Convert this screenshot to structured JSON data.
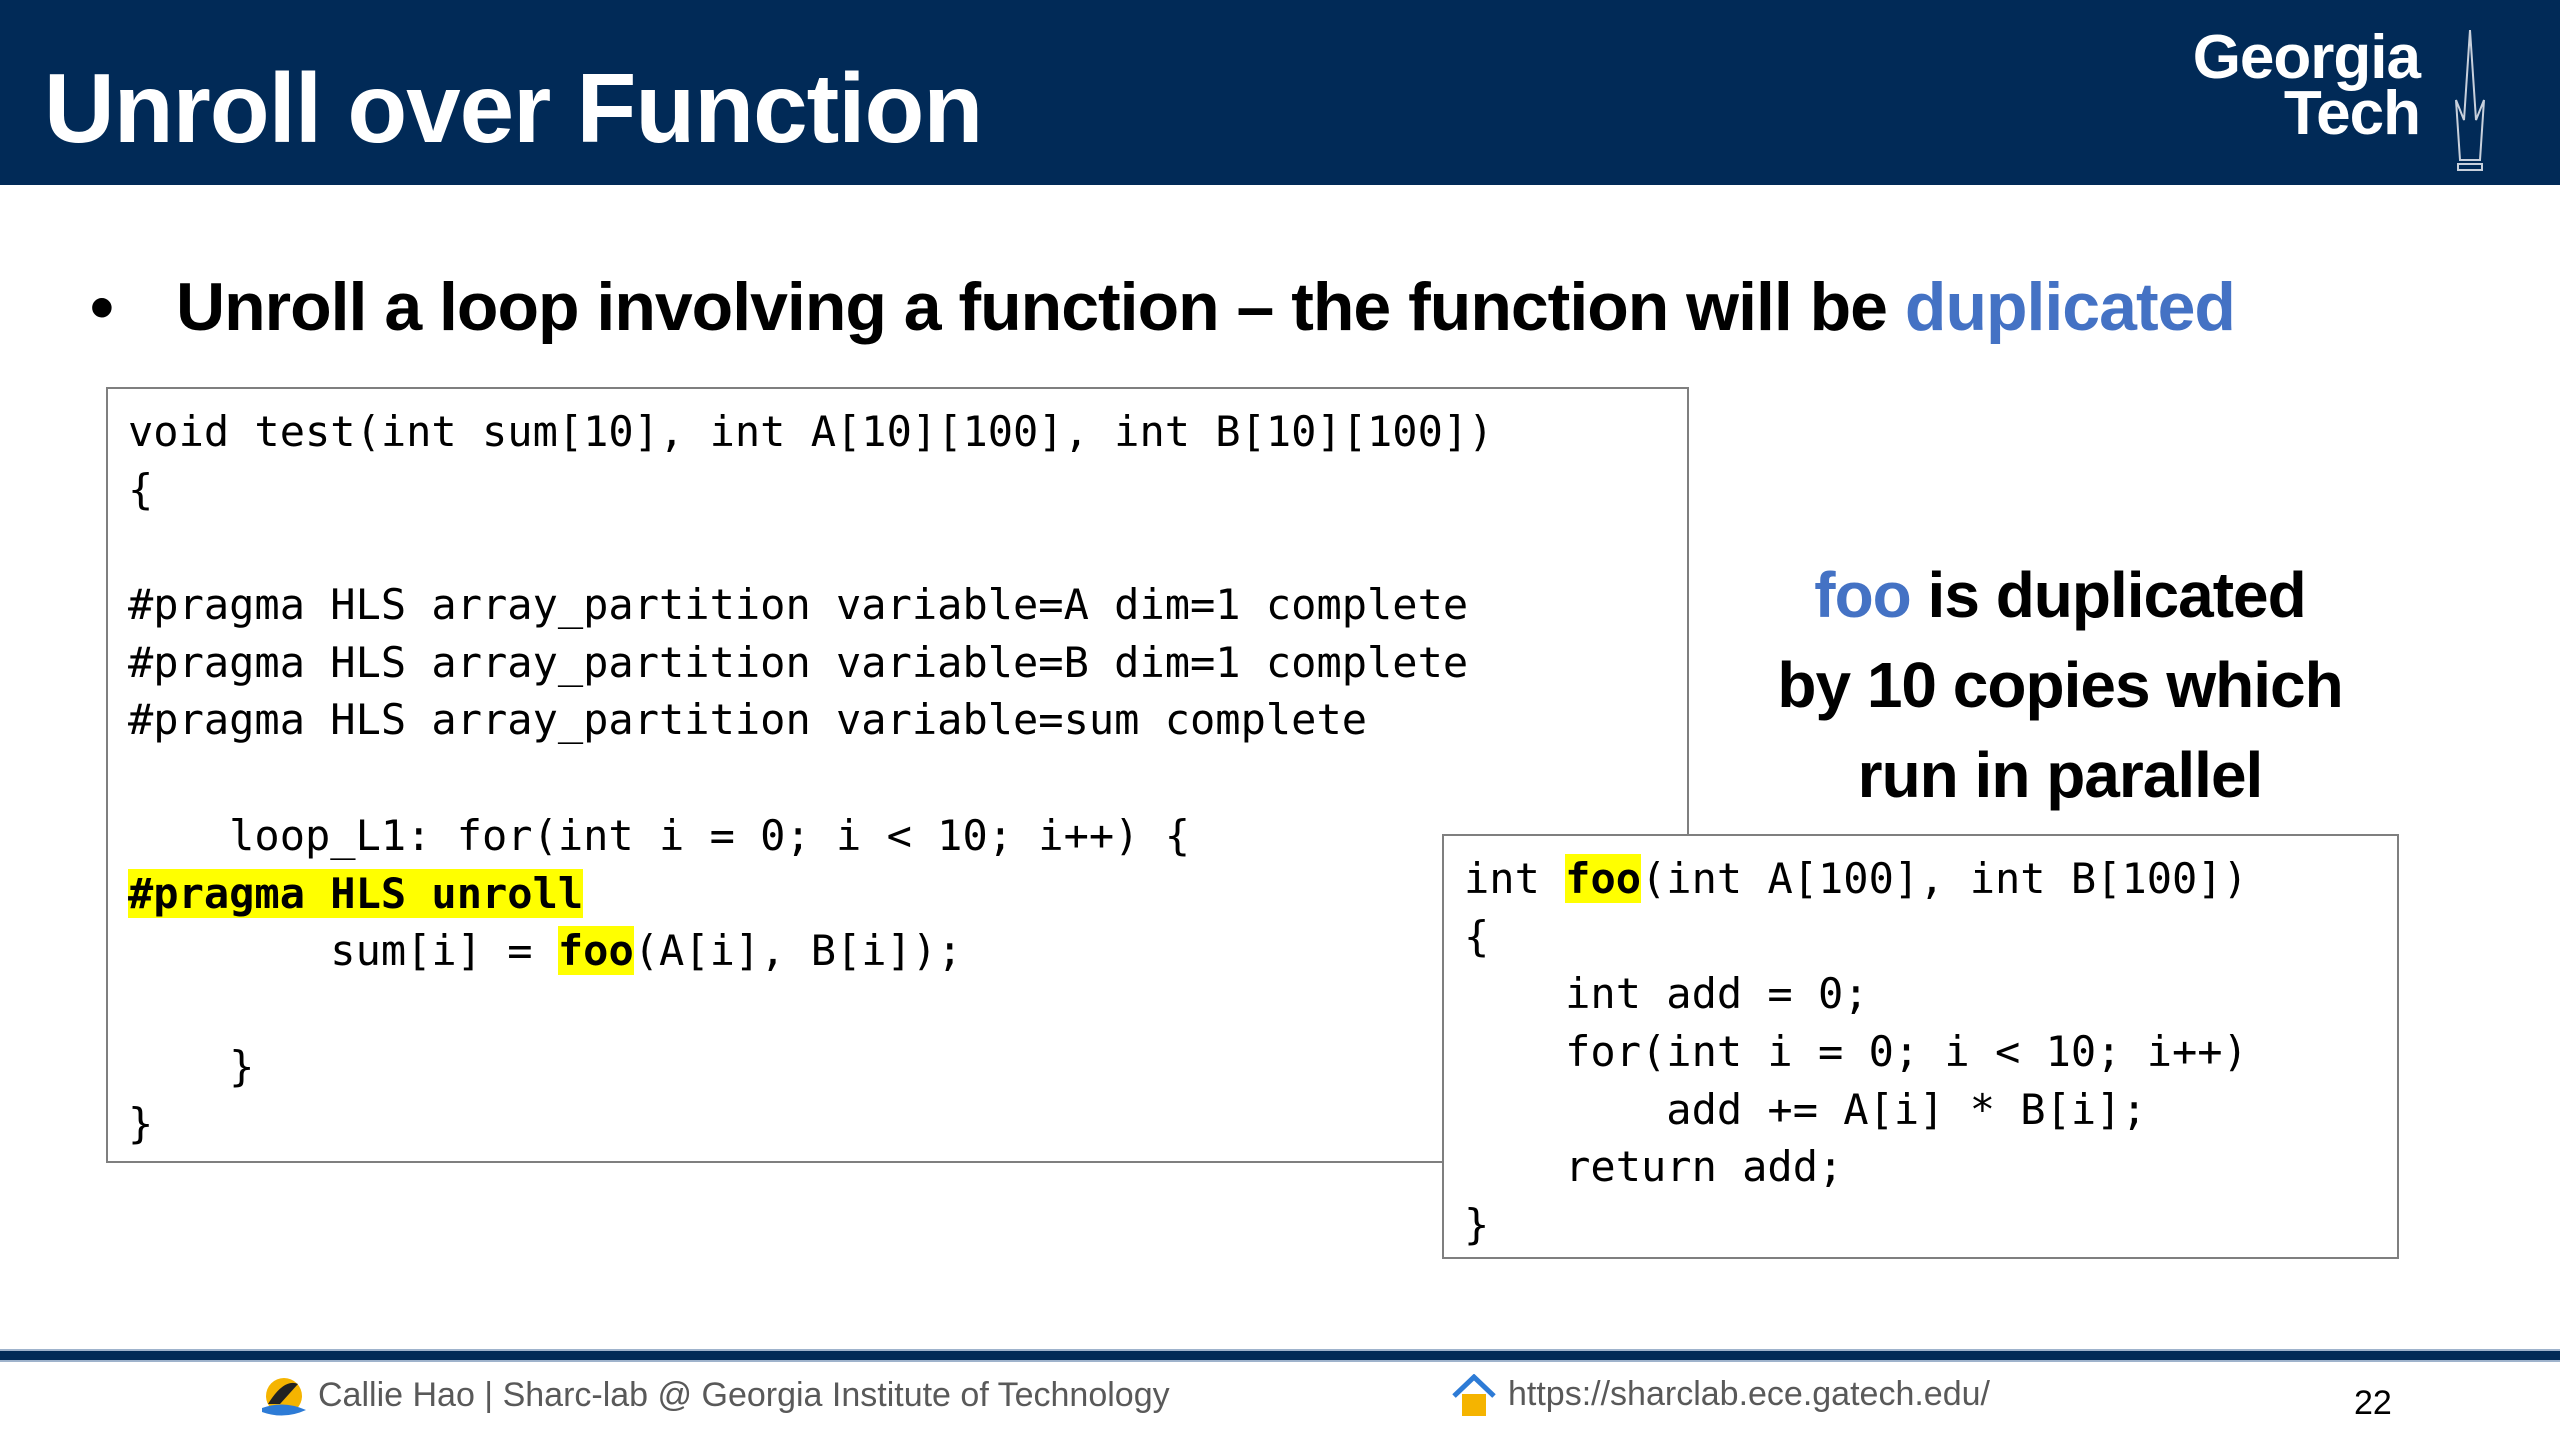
{
  "header": {
    "title": "Unroll over Function",
    "logo_text": [
      "Georgia",
      "Tech"
    ]
  },
  "bullet": {
    "dot": "•",
    "text_before": "Unroll a loop involving a function – the function will be ",
    "text_highlight": "duplicated"
  },
  "code_main": [
    [
      {
        "t": "void test(int sum[10], int A[10][100], int B[10][100])"
      }
    ],
    [
      {
        "t": "{"
      }
    ],
    [
      {
        "t": ""
      }
    ],
    [
      {
        "t": "#pragma HLS array_partition variable=A dim=1 complete"
      }
    ],
    [
      {
        "t": "#pragma HLS array_partition variable=B dim=1 complete"
      }
    ],
    [
      {
        "t": "#pragma HLS array_partition variable=sum complete"
      }
    ],
    [
      {
        "t": ""
      }
    ],
    [
      {
        "t": "    loop_L1: for(int i = 0; i < 10; i++) {"
      }
    ],
    [
      {
        "t": "#pragma HLS unroll",
        "hl": true
      }
    ],
    [
      {
        "t": "        sum[i] = "
      },
      {
        "t": "foo",
        "hl": true
      },
      {
        "t": "(A[i], B[i]);"
      }
    ],
    [
      {
        "t": ""
      }
    ],
    [
      {
        "t": "    }"
      }
    ],
    [
      {
        "t": "}"
      }
    ]
  ],
  "code_foo": [
    [
      {
        "t": "int "
      },
      {
        "t": "foo",
        "hl": true
      },
      {
        "t": "(int A[100], int B[100])"
      }
    ],
    [
      {
        "t": "{"
      }
    ],
    [
      {
        "t": "    int add = 0;"
      }
    ],
    [
      {
        "t": "    for(int i = 0; i < 10; i++)"
      }
    ],
    [
      {
        "t": "        add += A[i] * B[i];"
      }
    ],
    [
      {
        "t": "    return add;"
      }
    ],
    [
      {
        "t": "}"
      }
    ]
  ],
  "side_note": {
    "foo": "foo",
    "line1_rest": " is duplicated",
    "line2": "by 10 copies which",
    "line3": "run in parallel"
  },
  "footer": {
    "author": "Callie Hao | Sharc-lab @ Georgia Institute of Technology",
    "url": "https://sharclab.ece.gatech.edu/",
    "page_number": "22"
  },
  "colors": {
    "header": "#012a57",
    "accent_blue": "#4472c4",
    "highlight": "#ffff00"
  }
}
